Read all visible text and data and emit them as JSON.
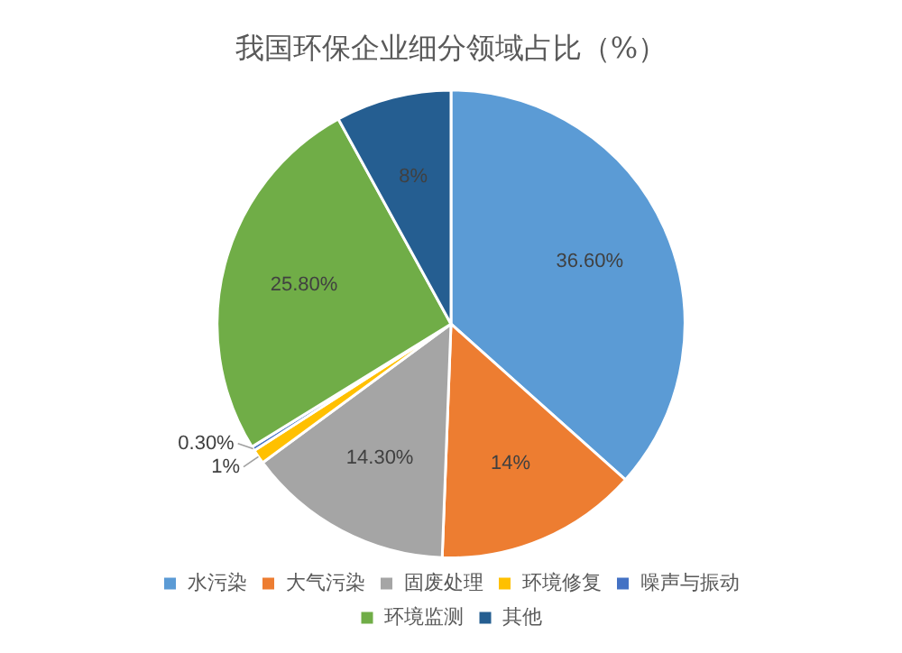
{
  "chart_data": {
    "type": "pie",
    "title": "我国环保企业细分领域占比（%）",
    "categories": [
      "水污染",
      "大气污染",
      "固废处理",
      "环境修复",
      "噪声与振动",
      "环境监测",
      "其他"
    ],
    "values": [
      36.6,
      14,
      14.3,
      1,
      0.3,
      25.8,
      8
    ],
    "colors": [
      "#5b9bd5",
      "#ed7d31",
      "#a5a5a5",
      "#ffc000",
      "#4472c4",
      "#70ad47",
      "#255e91"
    ],
    "value_labels": [
      "36.60%",
      "14%",
      "14.30%",
      "1%",
      "0.30%",
      "25.80%",
      "8%"
    ],
    "legend": "bottom"
  }
}
